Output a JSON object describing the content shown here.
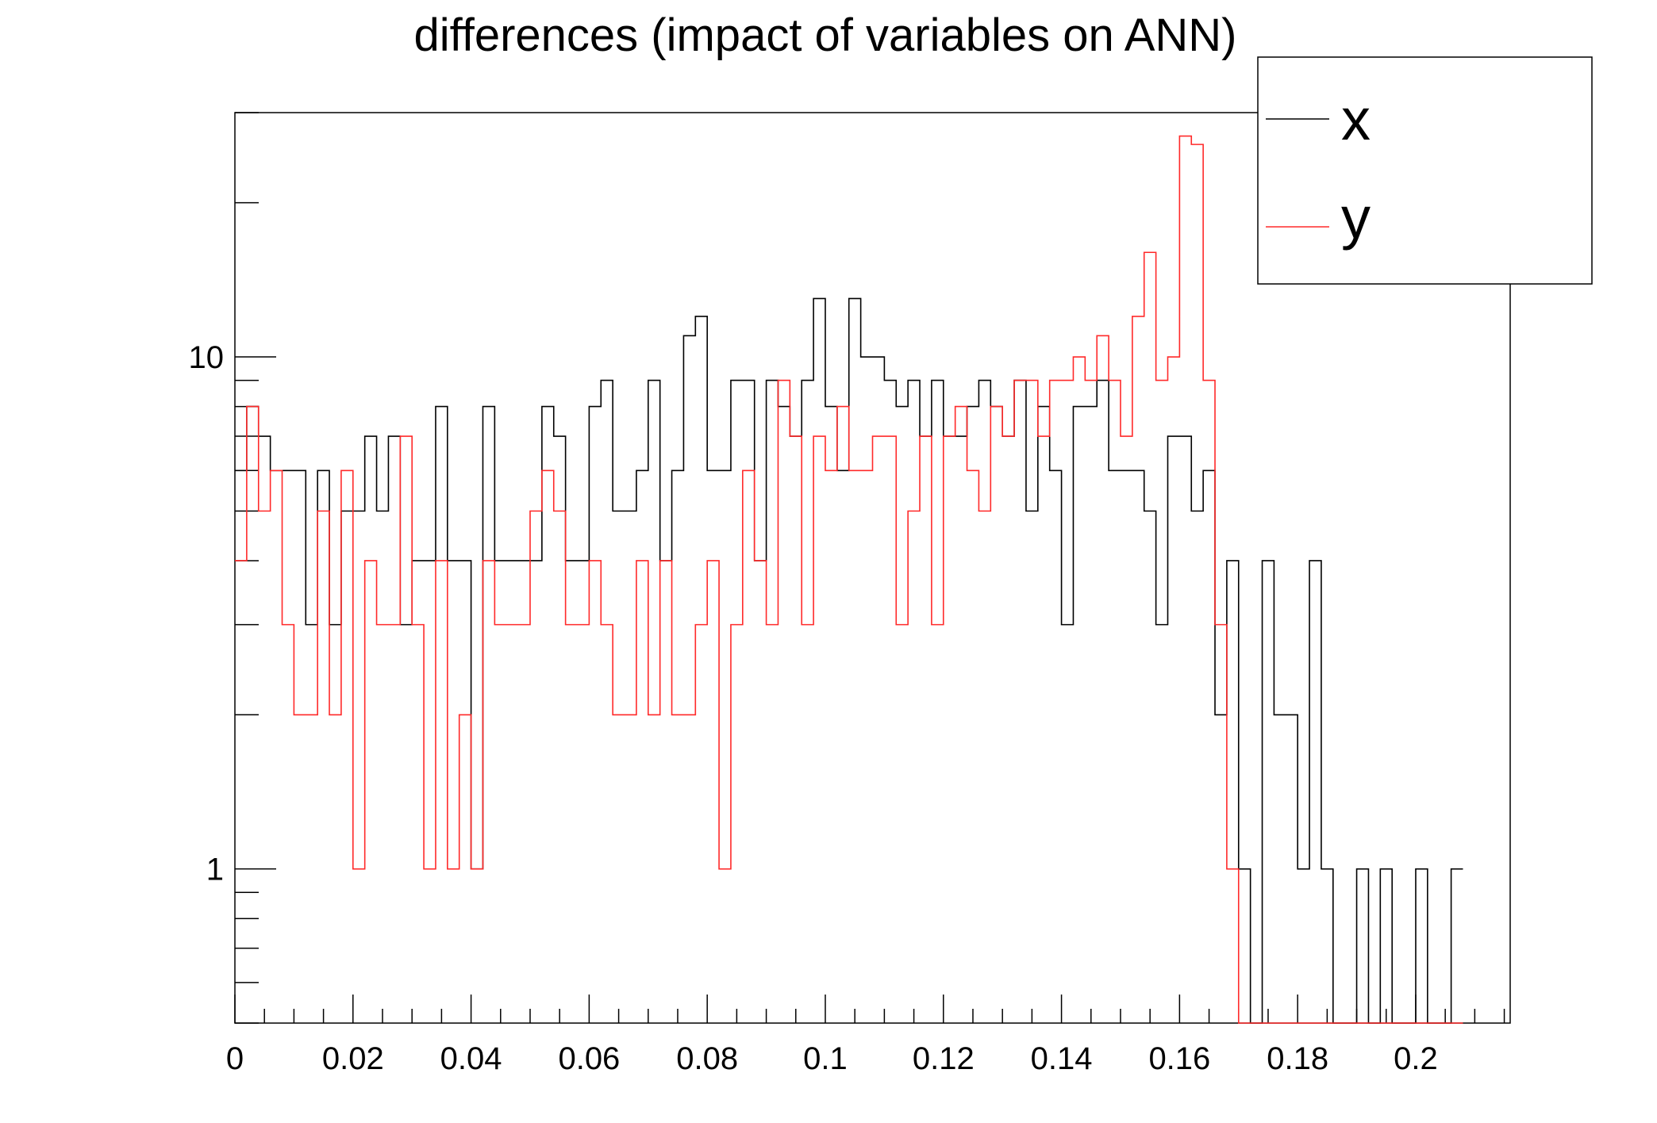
{
  "chart_data": {
    "type": "histogram",
    "title": "differences (impact of variables on ANN)",
    "xlabel": "",
    "ylabel": "",
    "xlim": [
      0,
      0.216
    ],
    "ylim": [
      0.5,
      30
    ],
    "y_scale": "log",
    "bin_width": 0.002,
    "x_ticks": [
      0,
      0.02,
      0.04,
      0.06,
      0.08,
      0.1,
      0.12,
      0.14,
      0.16,
      0.18,
      0.2
    ],
    "x_tick_labels": [
      "0",
      "0.02",
      "0.04",
      "0.06",
      "0.08",
      "0.1",
      "0.12",
      "0.14",
      "0.16",
      "0.18",
      "0.2"
    ],
    "y_tick_labels": [
      {
        "value": 1,
        "label": "1"
      },
      {
        "value": 10,
        "label": "10"
      }
    ],
    "legend": {
      "placement": "top-right"
    },
    "series": [
      {
        "name": "x",
        "color": "#000000",
        "values": [
          6,
          8,
          7,
          6,
          6,
          6,
          3,
          6,
          3,
          5,
          5,
          7,
          5,
          7,
          3,
          4,
          4,
          8,
          4,
          4,
          1,
          8,
          4,
          4,
          4,
          4,
          8,
          7,
          4,
          4,
          8,
          9,
          5,
          5,
          6,
          9,
          4,
          6,
          11,
          12,
          6,
          6,
          9,
          9,
          4,
          9,
          8,
          7,
          9,
          13,
          8,
          6,
          13,
          10,
          10,
          9,
          8,
          9,
          7,
          9,
          7,
          7,
          8,
          9,
          8,
          7,
          9,
          5,
          8,
          6,
          3,
          8,
          8,
          9,
          6,
          6,
          6,
          5,
          3,
          7,
          7,
          5,
          6,
          2,
          4,
          1,
          0,
          4,
          2,
          2,
          1,
          4,
          1,
          0,
          0,
          1,
          0,
          1,
          0,
          0,
          1,
          0,
          0,
          1
        ]
      },
      {
        "name": "y",
        "color": "#ff2a2a",
        "values": [
          4,
          8,
          5,
          6,
          3,
          2,
          2,
          5,
          2,
          6,
          1,
          4,
          3,
          3,
          7,
          3,
          1,
          4,
          1,
          2,
          1,
          4,
          3,
          3,
          3,
          5,
          6,
          5,
          3,
          3,
          4,
          3,
          2,
          2,
          4,
          2,
          4,
          2,
          2,
          3,
          4,
          1,
          3,
          6,
          4,
          3,
          9,
          7,
          3,
          7,
          6,
          8,
          6,
          6,
          7,
          7,
          3,
          5,
          7,
          3,
          7,
          8,
          6,
          5,
          8,
          7,
          9,
          9,
          7,
          9,
          9,
          10,
          9,
          11,
          9,
          7,
          12,
          16,
          9,
          10,
          27,
          26,
          9,
          3,
          1,
          0,
          0,
          0,
          0,
          0,
          0,
          0,
          0,
          0,
          0,
          0,
          0,
          0,
          0,
          0,
          0,
          0,
          0,
          0
        ]
      }
    ]
  }
}
